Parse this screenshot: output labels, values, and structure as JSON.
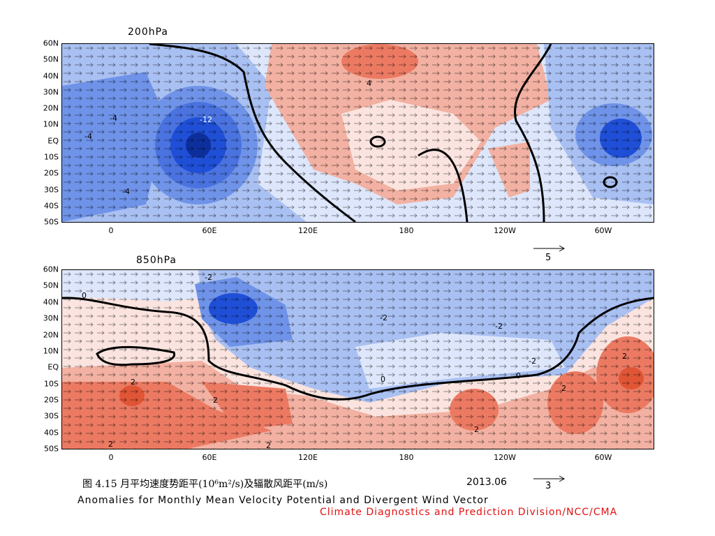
{
  "top_panel": {
    "title": "200hPa",
    "lat_labels": [
      "60N",
      "50N",
      "40N",
      "30N",
      "20N",
      "10N",
      "EQ",
      "10S",
      "20S",
      "30S",
      "40S",
      "50S"
    ],
    "lon_labels": [
      "0",
      "60E",
      "120E",
      "180",
      "120W",
      "60W"
    ],
    "contour_labels": [
      "-4",
      "-4",
      "-4",
      "4",
      "-12"
    ],
    "scale_value": "5"
  },
  "bottom_panel": {
    "title": "850hPa",
    "lat_labels": [
      "60N",
      "50N",
      "40N",
      "30N",
      "20N",
      "10N",
      "EQ",
      "10S",
      "20S",
      "30S",
      "40S",
      "50S"
    ],
    "lon_labels": [
      "0",
      "60E",
      "120E",
      "180",
      "120W",
      "60W"
    ],
    "contour_labels": [
      "-2",
      "-2",
      "-2",
      "-2",
      "2",
      "2",
      "2",
      "2",
      "2",
      "2",
      "2",
      "0",
      "0",
      "0"
    ],
    "scale_value": "3"
  },
  "caption": {
    "chinese": "图 4.15  月平均速度势距平(10⁶m²/s)及辐散风距平(m/s)",
    "date": "2013.06",
    "english": "Anomalies for Monthly Mean Velocity Potential and Divergent Wind Vector",
    "credit": "Climate Diagnostics and Prediction Division/NCC/CMA"
  },
  "colors": {
    "strong_negative": "#1f4fd6",
    "negative": "#6f93e8",
    "weak_negative": "#a9c0f2",
    "faint_negative": "#dde6fb",
    "faint_positive": "#fbe4df",
    "weak_positive": "#f2b1a2",
    "positive": "#ec7a62",
    "credit_text": "#e01010"
  }
}
